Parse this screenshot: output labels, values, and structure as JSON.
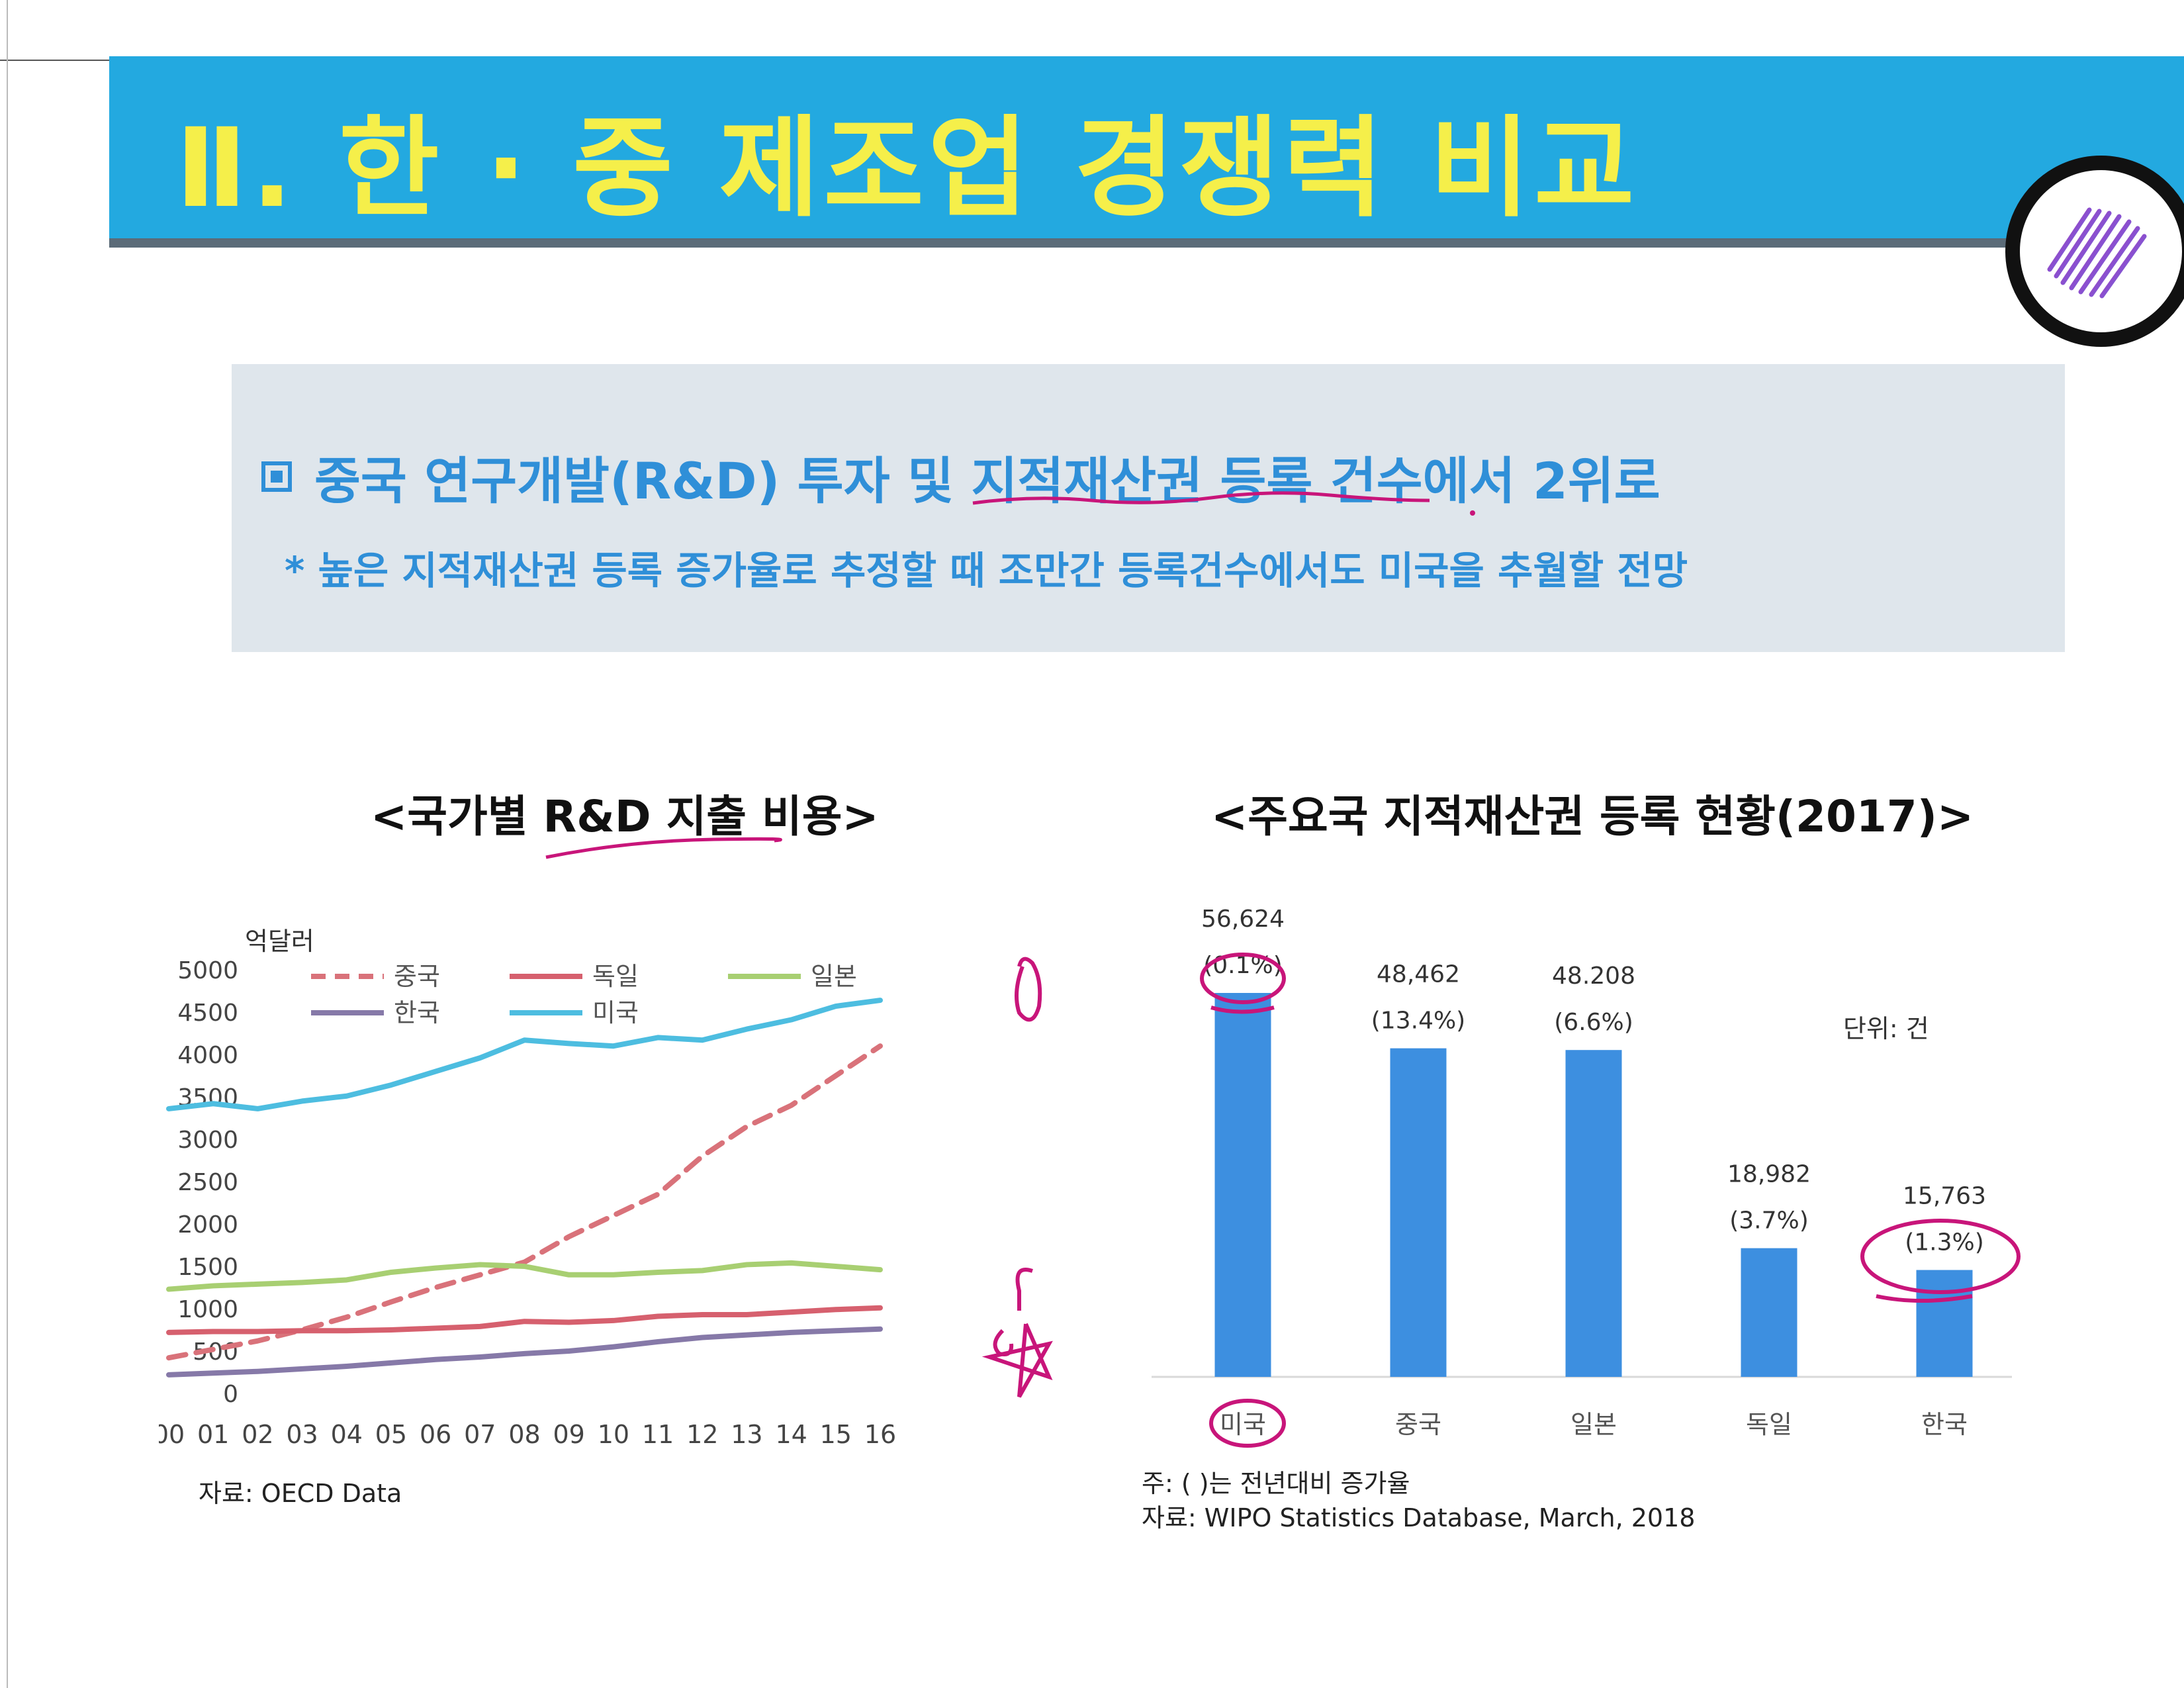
{
  "header": {
    "title": "Ⅱ. 한 · 중 제조업 경쟁력 비교"
  },
  "summary": {
    "headline": "중국 연구개발(R&D) 투자  및 지적재산권 등록 건수에서 2위로",
    "note": "* 높은 지적재산권 등록 증가율로 추정할 때 조만간 등록건수에서도 미국을 추월할 전망"
  },
  "colors": {
    "banner": "#23a9e0",
    "title_text": "#f5ef4a",
    "accent_blue": "#2f8fd8",
    "bar": "#3d8fe0",
    "china": "#d9727a",
    "germany": "#d6606e",
    "japan": "#a8cf72",
    "korea": "#8679a8",
    "usa": "#4dbde0",
    "annotation": "#c8157a"
  },
  "chart_data": [
    {
      "type": "line",
      "title": "<국가별 R&D 지출 비용>",
      "ylabel": "억달러",
      "xlabel": "",
      "ylim": [
        0,
        5000
      ],
      "yticks": [
        "5000",
        "4500",
        "4000",
        "3500",
        "3000",
        "2500",
        "2000",
        "1500",
        "1000",
        "500",
        "0"
      ],
      "x": [
        "00",
        "01",
        "02",
        "03",
        "04",
        "05",
        "06",
        "07",
        "08",
        "09",
        "10",
        "11",
        "12",
        "13",
        "14",
        "15",
        "16"
      ],
      "legend_position": "top",
      "series": [
        {
          "name": "중국",
          "dashed": true,
          "color": "#d9727a",
          "values": [
            420,
            520,
            620,
            750,
            900,
            1080,
            1250,
            1400,
            1550,
            1850,
            2100,
            2350,
            2800,
            3150,
            3400,
            3750,
            4100
          ]
        },
        {
          "name": "독일",
          "dashed": false,
          "color": "#d6606e",
          "values": [
            720,
            730,
            730,
            740,
            740,
            750,
            770,
            790,
            850,
            840,
            860,
            910,
            930,
            930,
            960,
            990,
            1010
          ]
        },
        {
          "name": "일본",
          "dashed": false,
          "color": "#a8cf72",
          "values": [
            1230,
            1270,
            1290,
            1310,
            1340,
            1430,
            1480,
            1520,
            1500,
            1400,
            1400,
            1430,
            1450,
            1520,
            1540,
            1500,
            1460
          ]
        },
        {
          "name": "한국",
          "dashed": false,
          "color": "#8679a8",
          "values": [
            220,
            240,
            260,
            290,
            320,
            360,
            400,
            430,
            470,
            500,
            550,
            610,
            660,
            690,
            720,
            740,
            760
          ]
        },
        {
          "name": "미국",
          "dashed": false,
          "color": "#4dbde0",
          "values": [
            3360,
            3420,
            3360,
            3450,
            3510,
            3640,
            3800,
            3960,
            4170,
            4130,
            4100,
            4200,
            4170,
            4300,
            4410,
            4570,
            4640
          ]
        }
      ],
      "source": "자료: OECD Data"
    },
    {
      "type": "bar",
      "title": "<주요국 지적재산권 등록 현황(2017)>",
      "unit": "단위: 건",
      "categories": [
        "미국",
        "중국",
        "일본",
        "독일",
        "한국"
      ],
      "values": [
        56624,
        48462,
        48208,
        18982,
        15763
      ],
      "value_labels": [
        "56,624",
        "48,462",
        "48.208",
        "18,982",
        "15,763"
      ],
      "growth_labels": [
        "(0.1%)",
        "(13.4%)",
        "(6.6%)",
        "(3.7%)",
        "(1.3%)"
      ],
      "note": "주: (  )는 전년대비 증가율",
      "source": "자료: WIPO Statistics Database, March, 2018"
    }
  ]
}
